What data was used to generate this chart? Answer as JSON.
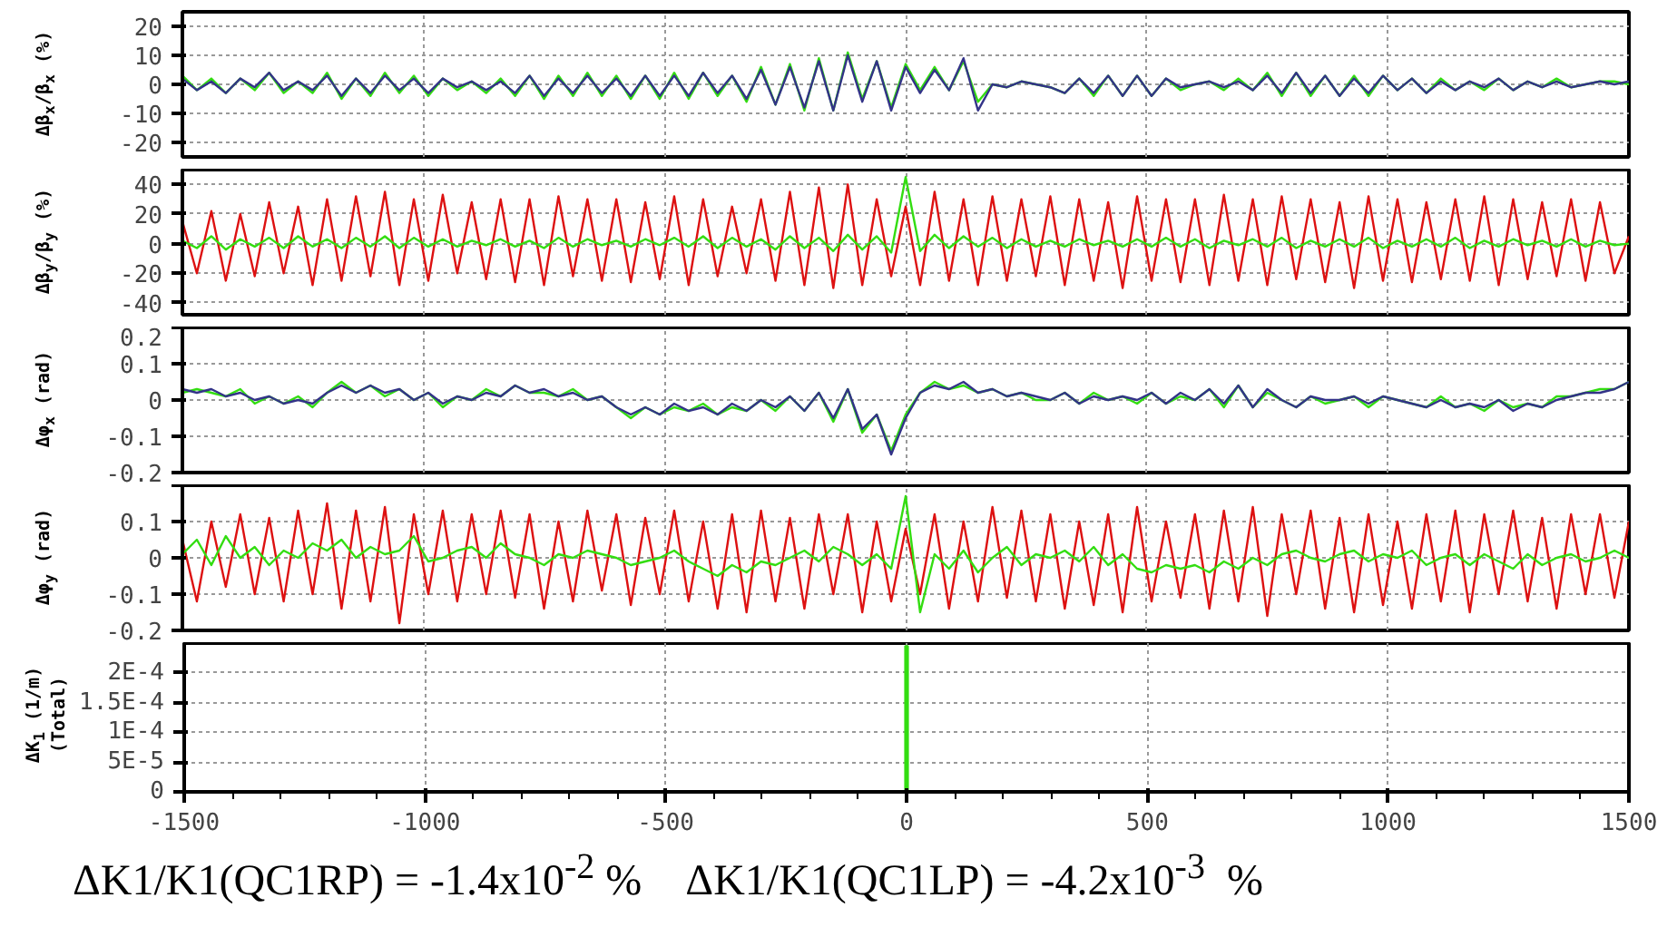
{
  "chart_data": [
    {
      "type": "line",
      "ylabel": "Δβ$_{x}$/β$_{x}$ (%)",
      "xlim": [
        -1500,
        1500
      ],
      "xticks": [
        -1500,
        -1000,
        -500,
        0,
        500,
        1000,
        1500
      ],
      "ylim": [
        -25,
        25
      ],
      "yticks": [
        -20,
        -10,
        0,
        10,
        20
      ],
      "grid": true,
      "tick_labels": "y",
      "line_style": "solid",
      "x": [
        -1500,
        -1470,
        -1440,
        -1410,
        -1380,
        -1350,
        -1320,
        -1290,
        -1260,
        -1230,
        -1200,
        -1170,
        -1140,
        -1110,
        -1080,
        -1050,
        -1020,
        -990,
        -960,
        -930,
        -900,
        -870,
        -840,
        -810,
        -780,
        -750,
        -720,
        -690,
        -660,
        -630,
        -600,
        -570,
        -540,
        -510,
        -480,
        -450,
        -420,
        -390,
        -360,
        -330,
        -300,
        -270,
        -240,
        -210,
        -180,
        -150,
        -120,
        -90,
        -60,
        -30,
        0,
        30,
        60,
        90,
        120,
        150,
        180,
        210,
        240,
        270,
        300,
        330,
        360,
        390,
        420,
        450,
        480,
        510,
        540,
        570,
        600,
        630,
        660,
        690,
        720,
        750,
        780,
        810,
        840,
        870,
        900,
        930,
        960,
        990,
        1020,
        1050,
        1080,
        1110,
        1140,
        1170,
        1200,
        1230,
        1260,
        1290,
        1320,
        1350,
        1380,
        1410,
        1440,
        1470,
        1500
      ],
      "series": [
        {
          "color": "#33dd11",
          "values": [
            3,
            -2,
            2,
            -3,
            2,
            -2,
            4,
            -3,
            1,
            -3,
            4,
            -5,
            2,
            -4,
            4,
            -3,
            3,
            -4,
            2,
            -2,
            1,
            -3,
            2,
            -4,
            3,
            -5,
            3,
            -4,
            4,
            -4,
            3,
            -5,
            3,
            -5,
            4,
            -5,
            4,
            -4,
            3,
            -6,
            6,
            -7,
            7,
            -9,
            9,
            -9,
            11,
            -5,
            8,
            -8,
            7,
            -2,
            6,
            -2,
            8,
            -6,
            0,
            -1,
            1,
            0,
            -1,
            -3,
            2,
            -4,
            3,
            -4,
            3,
            -4,
            2,
            -2,
            0,
            1,
            -2,
            2,
            -2,
            4,
            -4,
            4,
            -4,
            3,
            -4,
            3,
            -4,
            3,
            -2,
            2,
            -3,
            2,
            -2,
            1,
            -2,
            2,
            -2,
            1,
            -1,
            2,
            -1,
            0,
            1,
            1,
            0
          ]
        },
        {
          "color": "#333388",
          "values": [
            2,
            -2,
            1,
            -3,
            2,
            -1,
            4,
            -2,
            1,
            -2,
            3,
            -4,
            2,
            -3,
            3,
            -2,
            2,
            -3,
            2,
            -1,
            1,
            -2,
            1,
            -3,
            3,
            -4,
            2,
            -3,
            3,
            -3,
            2,
            -4,
            3,
            -4,
            3,
            -4,
            4,
            -3,
            3,
            -5,
            5,
            -7,
            6,
            -8,
            8,
            -9,
            10,
            -6,
            8,
            -9,
            6,
            -3,
            5,
            -2,
            9,
            -9,
            0,
            -1,
            1,
            0,
            -1,
            -3,
            2,
            -3,
            3,
            -4,
            3,
            -4,
            2,
            -1,
            0,
            1,
            -1,
            1,
            -2,
            3,
            -3,
            4,
            -3,
            3,
            -4,
            2,
            -3,
            3,
            -2,
            2,
            -3,
            1,
            -2,
            1,
            -1,
            2,
            -2,
            1,
            -1,
            1,
            -1,
            0,
            1,
            0,
            1
          ]
        }
      ]
    },
    {
      "type": "line",
      "ylabel": "Δβ$_{y}$/β$_{y}$ (%)",
      "xlim": [
        -1500,
        1500
      ],
      "xticks": [
        -1500,
        -1000,
        -500,
        0,
        500,
        1000,
        1500
      ],
      "ylim": [
        -48,
        50
      ],
      "yticks": [
        -40,
        -20,
        0,
        20,
        40
      ],
      "grid": true,
      "tick_labels": "y",
      "line_style": "solid",
      "x": [
        -1500,
        -1470,
        -1440,
        -1410,
        -1380,
        -1350,
        -1320,
        -1290,
        -1260,
        -1230,
        -1200,
        -1170,
        -1140,
        -1110,
        -1080,
        -1050,
        -1020,
        -990,
        -960,
        -930,
        -900,
        -870,
        -840,
        -810,
        -780,
        -750,
        -720,
        -690,
        -660,
        -630,
        -600,
        -570,
        -540,
        -510,
        -480,
        -450,
        -420,
        -390,
        -360,
        -330,
        -300,
        -270,
        -240,
        -210,
        -180,
        -150,
        -120,
        -90,
        -60,
        -30,
        0,
        30,
        60,
        90,
        120,
        150,
        180,
        210,
        240,
        270,
        300,
        330,
        360,
        390,
        420,
        450,
        480,
        510,
        540,
        570,
        600,
        630,
        660,
        690,
        720,
        750,
        780,
        810,
        840,
        870,
        900,
        930,
        960,
        990,
        1020,
        1050,
        1080,
        1110,
        1140,
        1170,
        1200,
        1230,
        1260,
        1290,
        1320,
        1350,
        1380,
        1410,
        1440,
        1470,
        1500
      ],
      "series": [
        {
          "color": "#dd1111",
          "values": [
            15,
            -20,
            22,
            -25,
            20,
            -22,
            28,
            -20,
            25,
            -28,
            30,
            -25,
            32,
            -22,
            35,
            -28,
            30,
            -25,
            33,
            -20,
            28,
            -24,
            30,
            -26,
            30,
            -28,
            32,
            -22,
            30,
            -25,
            30,
            -26,
            28,
            -24,
            32,
            -28,
            30,
            -22,
            25,
            -20,
            30,
            -25,
            35,
            -28,
            38,
            -30,
            40,
            -28,
            30,
            -22,
            25,
            -28,
            35,
            -25,
            30,
            -28,
            32,
            -25,
            30,
            -22,
            32,
            -28,
            30,
            -25,
            28,
            -30,
            32,
            -25,
            30,
            -26,
            30,
            -28,
            33,
            -25,
            30,
            -28,
            32,
            -24,
            30,
            -26,
            28,
            -30,
            32,
            -25,
            30,
            -26,
            28,
            -24,
            30,
            -25,
            32,
            -28,
            30,
            -24,
            28,
            -22,
            30,
            -25,
            28,
            -20,
            5
          ]
        },
        {
          "color": "#33dd11",
          "values": [
            2,
            -3,
            5,
            -4,
            3,
            -2,
            4,
            -3,
            5,
            -2,
            3,
            -3,
            4,
            -2,
            5,
            -3,
            4,
            -2,
            3,
            -2,
            2,
            -1,
            3,
            -2,
            2,
            -3,
            4,
            -2,
            3,
            -1,
            2,
            -2,
            3,
            -1,
            4,
            -2,
            5,
            -3,
            4,
            -2,
            3,
            -4,
            5,
            -3,
            4,
            -5,
            6,
            -4,
            5,
            -6,
            45,
            -5,
            6,
            -3,
            5,
            -2,
            4,
            -3,
            3,
            -2,
            2,
            -2,
            3,
            -1,
            2,
            -2,
            3,
            -2,
            4,
            -2,
            3,
            -3,
            2,
            -1,
            3,
            -2,
            4,
            -3,
            2,
            -2,
            3,
            -2,
            4,
            -3,
            2,
            -2,
            3,
            -2,
            4,
            -3,
            2,
            -2,
            3,
            -1,
            2,
            -2,
            3,
            -2,
            2,
            -1,
            0
          ]
        }
      ]
    },
    {
      "type": "line",
      "ylabel": "Δφ$_{x}$ (rad)",
      "xlim": [
        -1500,
        1500
      ],
      "xticks": [
        -1500,
        -1000,
        -500,
        0,
        500,
        1000,
        1500
      ],
      "ylim": [
        -0.2,
        0.2
      ],
      "yticks": [
        -0.2,
        -0.1,
        0,
        0.1,
        0.2
      ],
      "grid": true,
      "tick_labels": "y",
      "line_style": "solid",
      "x": [
        -1500,
        -1470,
        -1440,
        -1410,
        -1380,
        -1350,
        -1320,
        -1290,
        -1260,
        -1230,
        -1200,
        -1170,
        -1140,
        -1110,
        -1080,
        -1050,
        -1020,
        -990,
        -960,
        -930,
        -900,
        -870,
        -840,
        -810,
        -780,
        -750,
        -720,
        -690,
        -660,
        -630,
        -600,
        -570,
        -540,
        -510,
        -480,
        -450,
        -420,
        -390,
        -360,
        -330,
        -300,
        -270,
        -240,
        -210,
        -180,
        -150,
        -120,
        -90,
        -60,
        -30,
        0,
        30,
        60,
        90,
        120,
        150,
        180,
        210,
        240,
        270,
        300,
        330,
        360,
        390,
        420,
        450,
        480,
        510,
        540,
        570,
        600,
        630,
        660,
        690,
        720,
        750,
        780,
        810,
        840,
        870,
        900,
        930,
        960,
        990,
        1020,
        1050,
        1080,
        1110,
        1140,
        1170,
        1200,
        1230,
        1260,
        1290,
        1320,
        1350,
        1380,
        1410,
        1440,
        1470,
        1500
      ],
      "series": [
        {
          "color": "#33dd11",
          "values": [
            0.02,
            0.03,
            0.02,
            0.01,
            0.03,
            -0.01,
            0.01,
            -0.01,
            0.01,
            -0.02,
            0.02,
            0.05,
            0.02,
            0.04,
            0.01,
            0.03,
            0,
            0.02,
            -0.02,
            0.01,
            0,
            0.03,
            0.01,
            0.04,
            0.02,
            0.02,
            0.01,
            0.03,
            0,
            0.01,
            -0.02,
            -0.05,
            -0.02,
            -0.04,
            -0.02,
            -0.03,
            -0.01,
            -0.04,
            -0.02,
            -0.03,
            0,
            -0.03,
            0.01,
            -0.03,
            0.02,
            -0.06,
            0.03,
            -0.09,
            -0.04,
            -0.14,
            -0.04,
            0.02,
            0.05,
            0.03,
            0.04,
            0.02,
            0.03,
            0.01,
            0.02,
            0,
            0,
            0.02,
            -0.01,
            0.02,
            0,
            0.01,
            -0.01,
            0.02,
            -0.01,
            0.01,
            0,
            0.03,
            -0.02,
            0.04,
            -0.02,
            0.02,
            0,
            -0.02,
            0.01,
            -0.01,
            0,
            0.01,
            -0.02,
            0.01,
            0,
            -0.01,
            -0.02,
            0.01,
            -0.02,
            -0.01,
            -0.03,
            0,
            -0.02,
            -0.01,
            -0.02,
            0.01,
            0.01,
            0.02,
            0.03,
            0.03,
            0.05
          ]
        },
        {
          "color": "#333388",
          "values": [
            0.03,
            0.02,
            0.03,
            0.01,
            0.02,
            0,
            0.01,
            -0.01,
            0,
            -0.01,
            0.02,
            0.04,
            0.02,
            0.04,
            0.02,
            0.03,
            0,
            0.02,
            -0.01,
            0.01,
            0,
            0.02,
            0.01,
            0.04,
            0.02,
            0.03,
            0.01,
            0.02,
            0,
            0.01,
            -0.02,
            -0.04,
            -0.02,
            -0.04,
            -0.01,
            -0.03,
            -0.02,
            -0.04,
            -0.01,
            -0.03,
            0,
            -0.02,
            0.01,
            -0.03,
            0.02,
            -0.05,
            0.03,
            -0.08,
            -0.04,
            -0.15,
            -0.05,
            0.02,
            0.04,
            0.03,
            0.05,
            0.02,
            0.03,
            0.01,
            0.02,
            0.01,
            0,
            0.02,
            -0.01,
            0.01,
            0,
            0.01,
            0,
            0.02,
            -0.01,
            0.02,
            0,
            0.03,
            -0.01,
            0.04,
            -0.02,
            0.03,
            0,
            -0.02,
            0.01,
            0,
            0,
            0.01,
            -0.01,
            0.01,
            0,
            -0.01,
            -0.02,
            0,
            -0.02,
            -0.01,
            -0.02,
            0,
            -0.03,
            -0.01,
            -0.02,
            0,
            0.01,
            0.02,
            0.02,
            0.03,
            0.05
          ]
        }
      ]
    },
    {
      "type": "line",
      "ylabel": "Δφ$_{y}$ (rad)",
      "xlim": [
        -1500,
        1500
      ],
      "xticks": [
        -1500,
        -1000,
        -500,
        0,
        500,
        1000,
        1500
      ],
      "ylim": [
        -0.2,
        0.2
      ],
      "yticks": [
        -0.2,
        -0.1,
        0,
        0.1,
        {
          "value": 0.2,
          "label": null
        }
      ],
      "grid": true,
      "tick_labels": "y",
      "line_style": "solid",
      "x": [
        -1500,
        -1470,
        -1440,
        -1410,
        -1380,
        -1350,
        -1320,
        -1290,
        -1260,
        -1230,
        -1200,
        -1170,
        -1140,
        -1110,
        -1080,
        -1050,
        -1020,
        -990,
        -960,
        -930,
        -900,
        -870,
        -840,
        -810,
        -780,
        -750,
        -720,
        -690,
        -660,
        -630,
        -600,
        -570,
        -540,
        -510,
        -480,
        -450,
        -420,
        -390,
        -360,
        -330,
        -300,
        -270,
        -240,
        -210,
        -180,
        -150,
        -120,
        -90,
        -60,
        -30,
        0,
        30,
        60,
        90,
        120,
        150,
        180,
        210,
        240,
        270,
        300,
        330,
        360,
        390,
        420,
        450,
        480,
        510,
        540,
        570,
        600,
        630,
        660,
        690,
        720,
        750,
        780,
        810,
        840,
        870,
        900,
        930,
        960,
        990,
        1020,
        1050,
        1080,
        1110,
        1140,
        1170,
        1200,
        1230,
        1260,
        1290,
        1320,
        1350,
        1380,
        1410,
        1440,
        1470,
        1500
      ],
      "series": [
        {
          "color": "#dd1111",
          "values": [
            0.05,
            -0.12,
            0.1,
            -0.08,
            0.12,
            -0.1,
            0.11,
            -0.12,
            0.13,
            -0.1,
            0.15,
            -0.14,
            0.13,
            -0.12,
            0.14,
            -0.18,
            0.12,
            -0.1,
            0.13,
            -0.12,
            0.12,
            -0.1,
            0.13,
            -0.11,
            0.12,
            -0.14,
            0.1,
            -0.12,
            0.13,
            -0.09,
            0.12,
            -0.13,
            0.11,
            -0.1,
            0.13,
            -0.12,
            0.1,
            -0.14,
            0.12,
            -0.15,
            0.13,
            -0.12,
            0.11,
            -0.14,
            0.12,
            -0.1,
            0.12,
            -0.15,
            0.1,
            -0.12,
            0.08,
            -0.1,
            0.12,
            -0.14,
            0.1,
            -0.12,
            0.14,
            -0.11,
            0.13,
            -0.12,
            0.12,
            -0.14,
            0.1,
            -0.13,
            0.12,
            -0.15,
            0.14,
            -0.12,
            0.1,
            -0.11,
            0.12,
            -0.14,
            0.13,
            -0.12,
            0.14,
            -0.16,
            0.12,
            -0.1,
            0.13,
            -0.14,
            0.11,
            -0.15,
            0.12,
            -0.13,
            0.1,
            -0.14,
            0.12,
            -0.12,
            0.13,
            -0.15,
            0.12,
            -0.1,
            0.13,
            -0.12,
            0.11,
            -0.14,
            0.12,
            -0.1,
            0.12,
            -0.11,
            0.1
          ]
        },
        {
          "color": "#33dd11",
          "values": [
            0.01,
            0.05,
            -0.02,
            0.06,
            0,
            0.03,
            -0.02,
            0.02,
            0,
            0.04,
            0.02,
            0.05,
            0,
            0.03,
            0.01,
            0.02,
            0.06,
            -0.01,
            0,
            0.02,
            0.03,
            0,
            0.04,
            0.01,
            0,
            -0.02,
            0.01,
            0,
            0.02,
            0.01,
            0,
            -0.02,
            -0.01,
            0,
            0.02,
            -0.01,
            -0.03,
            -0.05,
            -0.02,
            -0.04,
            -0.01,
            -0.02,
            0,
            0.02,
            -0.01,
            0.03,
            0.01,
            -0.02,
            0.01,
            -0.03,
            0.17,
            -0.15,
            0.01,
            -0.03,
            0.02,
            -0.04,
            0,
            0.03,
            -0.02,
            0.01,
            0,
            0.02,
            -0.01,
            0.03,
            -0.02,
            0.01,
            -0.03,
            -0.04,
            -0.02,
            -0.03,
            -0.02,
            -0.04,
            -0.01,
            -0.03,
            0,
            -0.02,
            0.01,
            0.02,
            0,
            -0.01,
            0.01,
            0.02,
            -0.01,
            0.01,
            0,
            0.02,
            -0.02,
            0,
            0.01,
            -0.02,
            0.01,
            -0.01,
            -0.03,
            0.01,
            -0.02,
            0,
            0.01,
            -0.01,
            0,
            0.02,
            0
          ]
        }
      ]
    },
    {
      "type": "bar",
      "ylabel": "ΔK$_{1}$ (1/m)\n(Total)",
      "xlim": [
        -1500,
        1500
      ],
      "xticks": [
        -1500,
        -1000,
        -500,
        0,
        500,
        1000,
        1500
      ],
      "ylim": [
        0,
        0.00025
      ],
      "yticks": [
        {
          "value": 0,
          "label": "0"
        },
        {
          "value": 5e-05,
          "label": "5E-5"
        },
        {
          "value": 0.0001,
          "label": "1E-4"
        },
        {
          "value": 0.00015,
          "label": "1.5E-4"
        },
        {
          "value": 0.0002,
          "label": "2E-4"
        }
      ],
      "grid": true,
      "x": [
        0
      ],
      "series": [
        {
          "color": "#33dd11",
          "values": [
            0.000245
          ]
        }
      ],
      "annotations": [
        "ΔK1/K1(QC1RP) = -1.4x10$^{-2}$ %    ΔK1/K1(QC1LP) = -4.2x10$^{-3}$  %"
      ]
    }
  ]
}
